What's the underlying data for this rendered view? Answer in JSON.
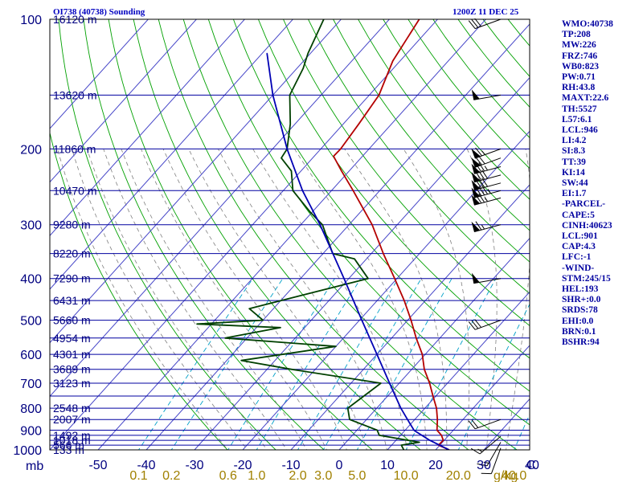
{
  "header": {
    "title": "OI738 (40738) Sounding",
    "time": "1200Z 11 DEC 25"
  },
  "stats": [
    "WMO:40738",
    "TP:208",
    "MW:226",
    "FRZ:746",
    "WB0:823",
    "PW:0.71",
    "RH:43.8",
    "MAXT:22.6",
    "TH:5527",
    "L57:6.1",
    "LCL:946",
    "LI:4.2",
    "SI:8.3",
    "TT:39",
    "KI:14",
    "SW:44",
    "EI:1.7",
    "-PARCEL-",
    "CAPE:5",
    "CINH:40623",
    "LCL:901",
    "CAP:4.3",
    "LFC:-1",
    "-WIND-",
    "STM:245/15",
    "HEL:193",
    "SHR+:0.0",
    "SRDS:78",
    "EHI:0.0",
    "BRN:0.1",
    "BSHR:94"
  ],
  "colors": {
    "frame": "#000000",
    "isobar": "#0000a0",
    "isotherm": "#4646c8",
    "dry_adiabat": "#00a000",
    "moist_adiabat": "#808080",
    "mixing_ratio": "#00a0c8",
    "temperature": "#b40000",
    "dewpoint": "#004000",
    "parcel": "#0000b4",
    "label_blue": "#000080",
    "label_mix": "#a08000"
  },
  "chart_data": {
    "type": "skew-t",
    "title": "OI738 (40738) Sounding",
    "xlabel": "C",
    "mix_unit": "g/kg",
    "pressure_unit": "mb",
    "pressure_range_hpa": [
      1000,
      100
    ],
    "temp_ticks_c": [
      -50,
      -40,
      -30,
      -20,
      -10,
      0,
      10,
      20,
      30,
      40
    ],
    "temp_tick_labels": [
      "-50",
      "-40",
      "-30",
      "-20",
      "-10",
      "0",
      "10",
      "20",
      "30",
      "40"
    ],
    "pressure_ticks_hpa": [
      100,
      200,
      300,
      400,
      500,
      600,
      700,
      800,
      900,
      1000
    ],
    "pressure_tick_labels": [
      "100",
      "200",
      "300",
      "400",
      "500",
      "600",
      "700",
      "800",
      "900",
      "1000"
    ],
    "height_labels": [
      {
        "p": 1000,
        "label": "133 m"
      },
      {
        "p": 975,
        "label": "566 m"
      },
      {
        "p": 950,
        "label": "1018 m"
      },
      {
        "p": 925,
        "label": "1492 m"
      },
      {
        "p": 850,
        "label": "2007 m"
      },
      {
        "p": 800,
        "label": "2548 m"
      },
      {
        "p": 700,
        "label": "3123 m"
      },
      {
        "p": 650,
        "label": "3689 m"
      },
      {
        "p": 600,
        "label": "4301 m"
      },
      {
        "p": 550,
        "label": "4954 m"
      },
      {
        "p": 500,
        "label": "5660 m"
      },
      {
        "p": 450,
        "label": "6431 m"
      },
      {
        "p": 400,
        "label": "7290 m"
      },
      {
        "p": 350,
        "label": "8220 m"
      },
      {
        "p": 300,
        "label": "9280 m"
      },
      {
        "p": 250,
        "label": "10470 m"
      },
      {
        "p": 200,
        "label": "11860 m"
      },
      {
        "p": 150,
        "label": "13620 m"
      },
      {
        "p": 100,
        "label": "16120 m"
      }
    ],
    "mixing_ratio_labels": [
      "0.1",
      "0.2",
      "0.6",
      "1.0",
      "2.0",
      "3.0",
      "5.0",
      "10.0",
      "20.0",
      "40.0"
    ],
    "mixing_ratio_values": [
      0.1,
      0.2,
      0.6,
      1.0,
      2.0,
      3.0,
      5.0,
      10.0,
      20.0,
      40.0
    ],
    "series": [
      {
        "name": "temperature",
        "points": [
          [
            1000,
            22.8
          ],
          [
            975,
            19.7
          ],
          [
            950,
            19.8
          ],
          [
            925,
            18.5
          ],
          [
            900,
            16.6
          ],
          [
            850,
            14.7
          ],
          [
            800,
            12.4
          ],
          [
            750,
            9.4
          ],
          [
            700,
            6.3
          ],
          [
            650,
            2.6
          ],
          [
            600,
            -0.6
          ],
          [
            550,
            -4.9
          ],
          [
            500,
            -9.3
          ],
          [
            450,
            -14.4
          ],
          [
            400,
            -20.5
          ],
          [
            350,
            -27.5
          ],
          [
            300,
            -35.2
          ],
          [
            250,
            -45.5
          ],
          [
            225,
            -51.6
          ],
          [
            208,
            -56.0
          ],
          [
            200,
            -55.9
          ],
          [
            175,
            -56.8
          ],
          [
            150,
            -58.0
          ],
          [
            125,
            -61.5
          ],
          [
            100,
            -63.8
          ]
        ]
      },
      {
        "name": "dewpoint",
        "points": [
          [
            1000,
            13.4
          ],
          [
            975,
            12.0
          ],
          [
            960,
            15.2
          ],
          [
            925,
            5.6
          ],
          [
            900,
            4.2
          ],
          [
            850,
            -3.5
          ],
          [
            800,
            -6.0
          ],
          [
            700,
            -3.8
          ],
          [
            650,
            -25.0
          ],
          [
            620,
            -37.0
          ],
          [
            575,
            -20.0
          ],
          [
            550,
            -44.5
          ],
          [
            520,
            -35.0
          ],
          [
            510,
            -53.0
          ],
          [
            500,
            -40.0
          ],
          [
            470,
            -45.0
          ],
          [
            400,
            -26.0
          ],
          [
            360,
            -32.5
          ],
          [
            350,
            -38.0
          ],
          [
            300,
            -45.5
          ],
          [
            280,
            -50.5
          ],
          [
            250,
            -58.0
          ],
          [
            225,
            -62.0
          ],
          [
            210,
            -66.5
          ],
          [
            200,
            -67.0
          ],
          [
            175,
            -71.0
          ],
          [
            150,
            -76.5
          ],
          [
            130,
            -78.7
          ],
          [
            120,
            -80.5
          ],
          [
            100,
            -83.6
          ]
        ]
      },
      {
        "name": "parcel",
        "points": [
          [
            1000,
            22.8
          ],
          [
            950,
            17.0
          ],
          [
            901,
            11.9
          ],
          [
            850,
            8.5
          ],
          [
            800,
            5.0
          ],
          [
            700,
            -2.0
          ],
          [
            600,
            -10.0
          ],
          [
            500,
            -19.5
          ],
          [
            400,
            -31.0
          ],
          [
            300,
            -46.0
          ],
          [
            250,
            -56.0
          ],
          [
            200,
            -67.0
          ],
          [
            150,
            -80.0
          ],
          [
            120,
            -89.0
          ]
        ]
      }
    ],
    "wind_barbs": [
      {
        "p": 990,
        "dir": 200,
        "spd": 10
      },
      {
        "p": 960,
        "dir": 210,
        "spd": 15
      },
      {
        "p": 930,
        "dir": 230,
        "spd": 15
      },
      {
        "p": 850,
        "dir": 250,
        "spd": 20
      },
      {
        "p": 500,
        "dir": 250,
        "spd": 30
      },
      {
        "p": 400,
        "dir": 260,
        "spd": 50
      },
      {
        "p": 300,
        "dir": 255,
        "spd": 65
      },
      {
        "p": 260,
        "dir": 255,
        "spd": 75
      },
      {
        "p": 250,
        "dir": 255,
        "spd": 85
      },
      {
        "p": 240,
        "dir": 255,
        "spd": 80
      },
      {
        "p": 230,
        "dir": 255,
        "spd": 80
      },
      {
        "p": 220,
        "dir": 255,
        "spd": 75
      },
      {
        "p": 210,
        "dir": 250,
        "spd": 70
      },
      {
        "p": 200,
        "dir": 250,
        "spd": 65
      },
      {
        "p": 150,
        "dir": 260,
        "spd": 50
      },
      {
        "p": 100,
        "dir": 250,
        "spd": 30
      }
    ]
  }
}
